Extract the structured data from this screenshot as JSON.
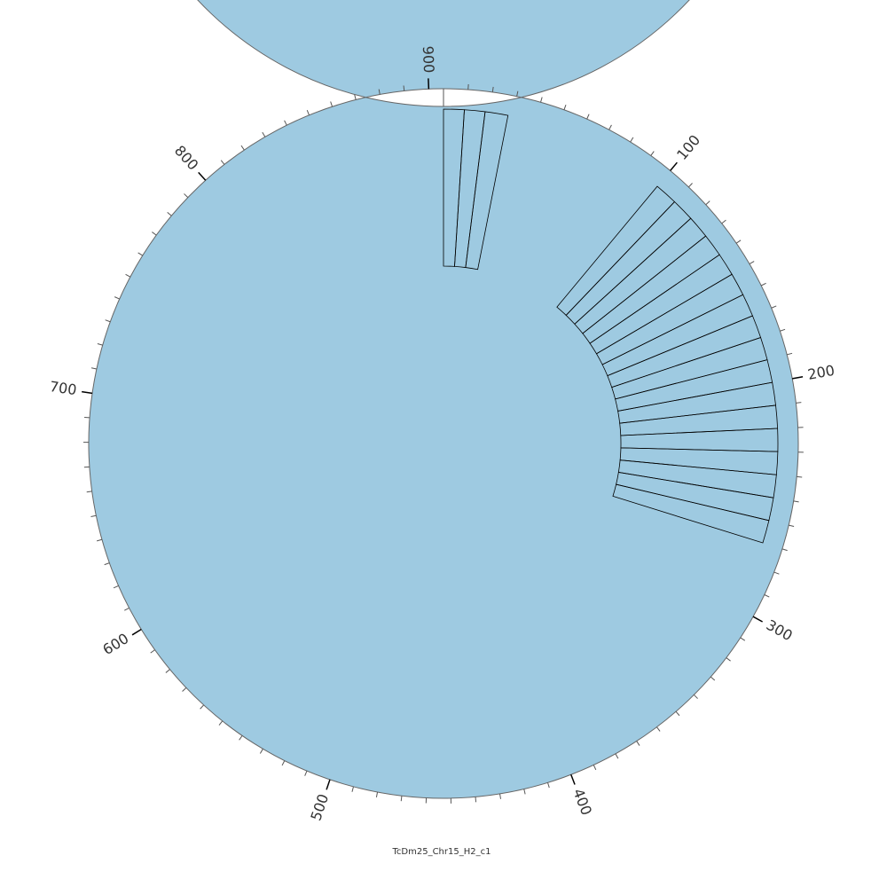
{
  "chart_data": {
    "type": "circular",
    "title": "TcDm25_Chr15_H2_c1",
    "band_color": "#9ecae1",
    "xlim": [
      0,
      906
    ],
    "xticks": [
      100,
      200,
      300,
      400,
      500,
      600,
      700,
      800,
      900
    ],
    "minor_ticks": [
      10,
      20,
      30,
      40,
      50,
      60,
      70,
      80,
      90,
      110,
      120,
      130,
      140,
      150,
      160,
      170,
      180,
      190,
      210,
      220,
      230,
      240,
      250,
      260,
      270,
      280,
      290,
      310,
      320,
      330,
      340,
      350,
      360,
      370,
      380,
      390,
      410,
      420,
      430,
      440,
      450,
      460,
      470,
      480,
      490,
      510,
      520,
      530,
      540,
      550,
      560,
      570,
      580,
      590,
      610,
      620,
      630,
      640,
      650,
      660,
      670,
      680,
      690,
      710,
      720,
      730,
      740,
      750,
      760,
      770,
      780,
      790,
      810,
      820,
      830,
      840,
      850,
      860,
      870,
      880,
      890
    ],
    "features": [
      {
        "start": 0,
        "end": 9
      },
      {
        "start": 9,
        "end": 18
      },
      {
        "start": 18,
        "end": 28
      },
      {
        "start": 100,
        "end": 110
      },
      {
        "start": 110,
        "end": 120
      },
      {
        "start": 120,
        "end": 130
      },
      {
        "start": 130,
        "end": 140
      },
      {
        "start": 140,
        "end": 150
      },
      {
        "start": 150,
        "end": 160
      },
      {
        "start": 160,
        "end": 170
      },
      {
        "start": 170,
        "end": 180
      },
      {
        "start": 180,
        "end": 190
      },
      {
        "start": 190,
        "end": 200
      },
      {
        "start": 200,
        "end": 210
      },
      {
        "start": 210,
        "end": 220
      },
      {
        "start": 220,
        "end": 230
      },
      {
        "start": 230,
        "end": 240
      },
      {
        "start": 240,
        "end": 250
      },
      {
        "start": 250,
        "end": 260
      },
      {
        "start": 260,
        "end": 270
      }
    ]
  }
}
